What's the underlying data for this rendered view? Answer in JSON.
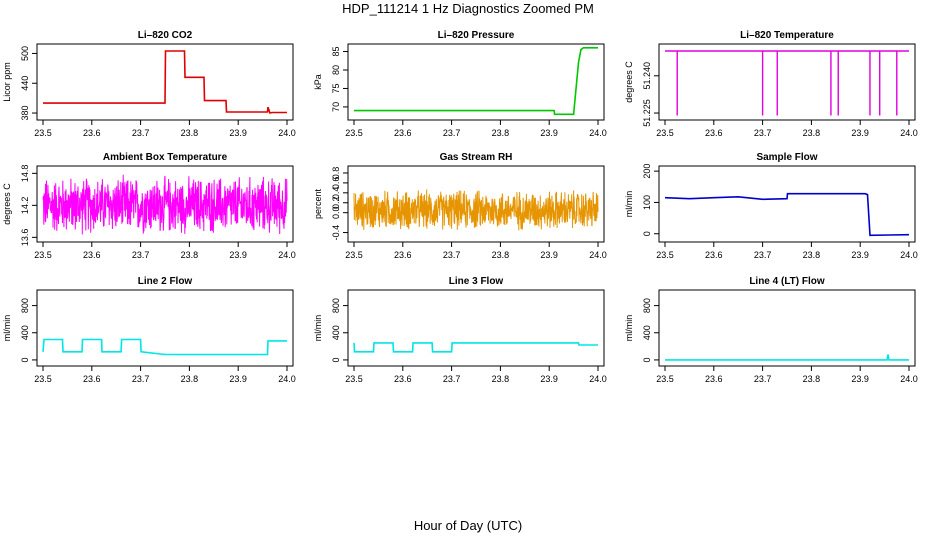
{
  "figure": {
    "title": "HDP_111214  1 Hz Diagnostics Zoomed PM",
    "xlabel": "Hour of Day (UTC)"
  },
  "chart_data": [
    {
      "type": "line",
      "title": "Li–820 CO2",
      "ylabel": "Licor ppm",
      "color": "#e00000",
      "xlim": [
        23.5,
        24.0
      ],
      "ylim": [
        370,
        515
      ],
      "xticks": [
        "23.5",
        "23.6",
        "23.7",
        "23.8",
        "23.9",
        "24.0"
      ],
      "yticks": [
        380,
        440,
        500
      ],
      "series": [
        {
          "x": [
            23.5,
            23.75,
            23.751,
            23.79,
            23.791,
            23.83,
            23.831,
            23.875,
            23.876,
            23.96,
            23.961,
            23.965,
            23.97,
            24.0
          ],
          "y": [
            400,
            400,
            505,
            505,
            452,
            452,
            405,
            405,
            382,
            382,
            392,
            380,
            381,
            381
          ]
        }
      ]
    },
    {
      "type": "line",
      "title": "Li–820 Pressure",
      "ylabel": "kPa",
      "color": "#00c800",
      "xlim": [
        23.5,
        24.0
      ],
      "ylim": [
        67,
        86.5
      ],
      "xticks": [
        "23.5",
        "23.6",
        "23.7",
        "23.8",
        "23.9",
        "24.0"
      ],
      "yticks": [
        70,
        75,
        80,
        85
      ],
      "series": [
        {
          "x": [
            23.5,
            23.8,
            23.91,
            23.911,
            23.95,
            23.96,
            23.965,
            23.97,
            24.0
          ],
          "y": [
            69,
            69,
            69,
            68,
            68,
            82,
            85.5,
            86,
            86
          ]
        }
      ]
    },
    {
      "type": "line",
      "title": "Li–820 Temperature",
      "ylabel": "degrees C",
      "color": "#e000e0",
      "xlim": [
        23.5,
        24.0
      ],
      "ylim": [
        51.223,
        51.252
      ],
      "xticks": [
        "23.5",
        "23.6",
        "23.7",
        "23.8",
        "23.9",
        "24.0"
      ],
      "yticks": [
        "51.225",
        "51.240"
      ],
      "spikes": [
        23.525,
        23.7,
        23.73,
        23.84,
        23.855,
        23.92,
        23.94,
        23.975
      ],
      "series": [
        {
          "x": [
            23.5,
            24.0
          ],
          "y": [
            51.25,
            51.25
          ]
        }
      ]
    },
    {
      "type": "line",
      "title": "Ambient Box Temperature",
      "ylabel": "degrees C",
      "color": "#ff00ff",
      "xlim": [
        23.5,
        24.0
      ],
      "ylim": [
        13.55,
        14.9
      ],
      "xticks": [
        "23.5",
        "23.6",
        "23.7",
        "23.8",
        "23.9",
        "24.0"
      ],
      "yticks": [
        "13.6",
        "14.2",
        "14.8"
      ],
      "noise": {
        "center": 14.2,
        "amplitude": 0.6
      },
      "series": [
        {
          "x": [
            23.5,
            24.0
          ],
          "y": [
            14.2,
            14.2
          ]
        }
      ]
    },
    {
      "type": "line",
      "title": "Gas Stream RH",
      "ylabel": "percent",
      "color": "#e69500",
      "xlim": [
        23.5,
        24.0
      ],
      "ylim": [
        -0.55,
        0.9
      ],
      "xticks": [
        "23.5",
        "23.6",
        "23.7",
        "23.8",
        "23.9",
        "24.0"
      ],
      "yticks": [
        "-0.4",
        "0.0",
        "0.2",
        "0.4",
        "0.6",
        "0.8"
      ],
      "noise": {
        "center": 0.05,
        "amplitude": 0.45
      },
      "series": [
        {
          "x": [
            23.5,
            24.0
          ],
          "y": [
            0.05,
            0.05
          ]
        }
      ]
    },
    {
      "type": "line",
      "title": "Sample Flow",
      "ylabel": "ml/min",
      "color": "#0000cc",
      "xlim": [
        23.5,
        24.0
      ],
      "ylim": [
        -20,
        210
      ],
      "xticks": [
        "23.5",
        "23.6",
        "23.7",
        "23.8",
        "23.9",
        "24.0"
      ],
      "yticks": [
        0,
        100,
        200
      ],
      "series": [
        {
          "x": [
            23.5,
            23.55,
            23.6,
            23.65,
            23.7,
            23.75,
            23.751,
            23.91,
            23.915,
            23.92,
            24.0
          ],
          "y": [
            115,
            112,
            115,
            118,
            110,
            112,
            128,
            128,
            125,
            -5,
            -3
          ]
        }
      ]
    },
    {
      "type": "line",
      "title": "Line 2 Flow",
      "ylabel": "ml/min",
      "color": "#00e5e5",
      "xlim": [
        23.5,
        24.0
      ],
      "ylim": [
        -60,
        1000
      ],
      "xticks": [
        "23.5",
        "23.6",
        "23.7",
        "23.8",
        "23.9",
        "24.0"
      ],
      "yticks": [
        0,
        400,
        800
      ],
      "series": [
        {
          "x": [
            23.5,
            23.502,
            23.54,
            23.541,
            23.58,
            23.581,
            23.62,
            23.621,
            23.66,
            23.661,
            23.7,
            23.701,
            23.75,
            23.96,
            23.961,
            24.0
          ],
          "y": [
            120,
            300,
            300,
            120,
            120,
            300,
            300,
            120,
            120,
            300,
            300,
            120,
            80,
            80,
            280,
            280
          ]
        }
      ]
    },
    {
      "type": "line",
      "title": "Line 3 Flow",
      "ylabel": "ml/min",
      "color": "#00e5e5",
      "xlim": [
        23.5,
        24.0
      ],
      "ylim": [
        -60,
        1000
      ],
      "xticks": [
        "23.5",
        "23.6",
        "23.7",
        "23.8",
        "23.9",
        "24.0"
      ],
      "yticks": [
        0,
        400,
        800
      ],
      "series": [
        {
          "x": [
            23.5,
            23.501,
            23.54,
            23.541,
            23.58,
            23.581,
            23.62,
            23.621,
            23.66,
            23.661,
            23.7,
            23.701,
            23.96,
            23.961,
            24.0
          ],
          "y": [
            250,
            120,
            120,
            250,
            250,
            120,
            120,
            250,
            250,
            120,
            120,
            250,
            250,
            220,
            220
          ]
        }
      ]
    },
    {
      "type": "line",
      "title": "Line 4 (LT) Flow",
      "ylabel": "ml/min",
      "color": "#00e5e5",
      "xlim": [
        23.5,
        24.0
      ],
      "ylim": [
        -60,
        1000
      ],
      "xticks": [
        "23.5",
        "23.6",
        "23.7",
        "23.8",
        "23.9",
        "24.0"
      ],
      "yticks": [
        0,
        400,
        800
      ],
      "series": [
        {
          "x": [
            23.5,
            23.955,
            23.957,
            23.959,
            23.961,
            24.0
          ],
          "y": [
            0,
            0,
            80,
            0,
            0,
            0
          ]
        }
      ]
    }
  ]
}
